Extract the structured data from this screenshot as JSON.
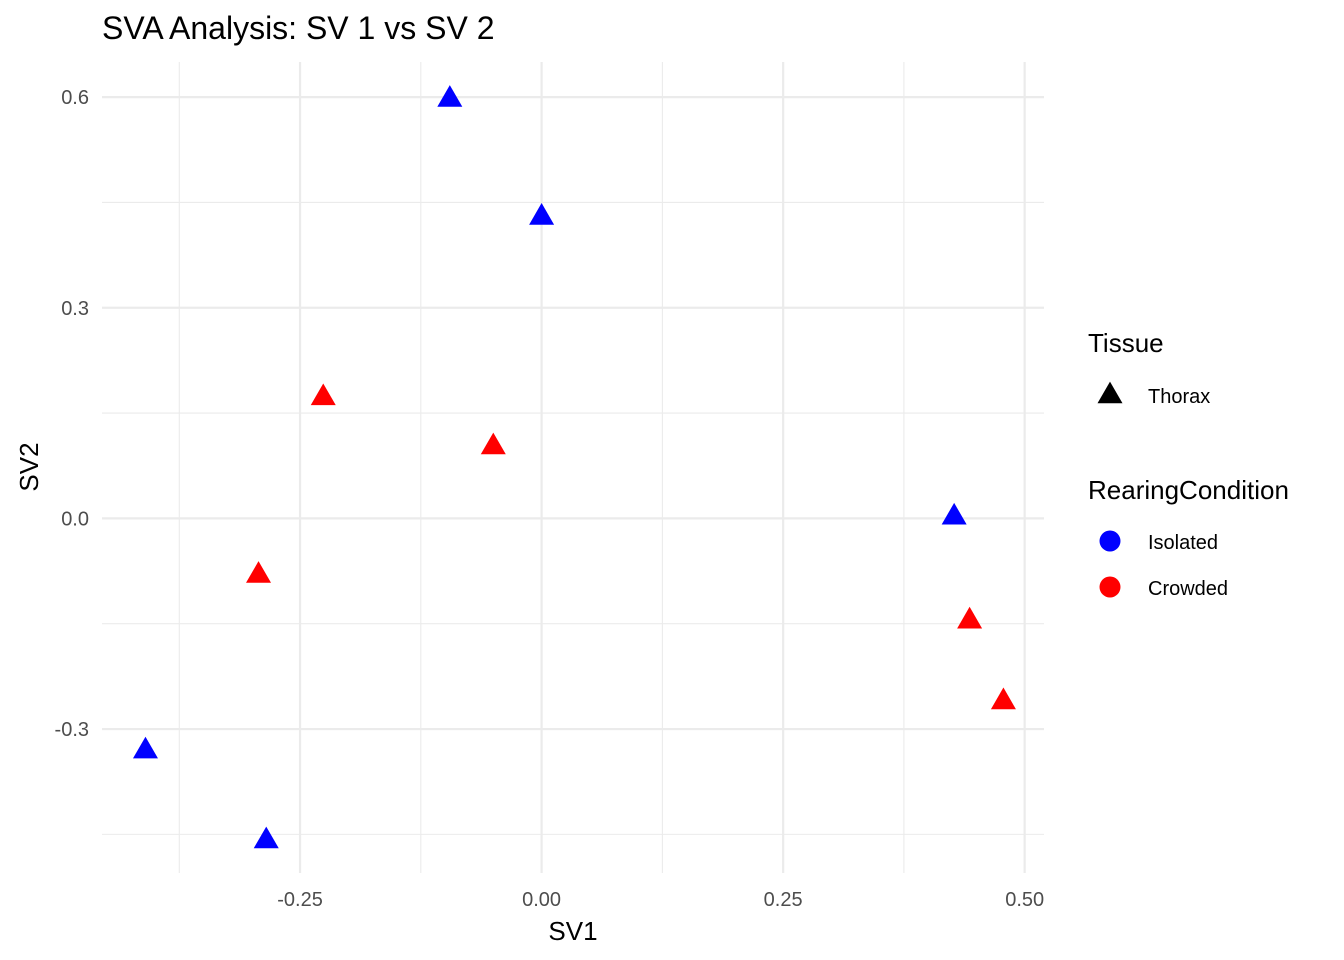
{
  "chart_data": {
    "type": "scatter",
    "title": "SVA Analysis: SV 1  vs SV 2",
    "xlabel": "SV1",
    "ylabel": "SV2",
    "xlim": [
      -0.455,
      0.52
    ],
    "ylim": [
      -0.505,
      0.65
    ],
    "x_ticks": [
      -0.25,
      0.0,
      0.25,
      0.5
    ],
    "x_tick_labels": [
      "-0.25",
      "0.00",
      "0.25",
      "0.50"
    ],
    "y_ticks": [
      -0.3,
      0.0,
      0.3,
      0.6
    ],
    "y_tick_labels": [
      "-0.3",
      "0.0",
      "0.3",
      "0.6"
    ],
    "x_minor": [
      -0.375,
      -0.125,
      0.125,
      0.375
    ],
    "y_minor": [
      -0.45,
      -0.15,
      0.15,
      0.45
    ],
    "grid": true,
    "legend_position": "right",
    "legends": [
      {
        "title": "Tissue",
        "entries": [
          {
            "label": "Thorax",
            "shape": "triangle",
            "color": "#000000"
          }
        ]
      },
      {
        "title": "RearingCondition",
        "entries": [
          {
            "label": "Isolated",
            "shape": "circle",
            "color": "#0000ff"
          },
          {
            "label": "Crowded",
            "shape": "circle",
            "color": "#ff0000"
          }
        ]
      }
    ],
    "series": [
      {
        "name": "Isolated",
        "color": "#0000ff",
        "shape": "triangle",
        "points": [
          {
            "x": -0.095,
            "y": 0.598
          },
          {
            "x": 0.0,
            "y": 0.43
          },
          {
            "x": 0.427,
            "y": 0.003
          },
          {
            "x": -0.41,
            "y": -0.33
          },
          {
            "x": -0.285,
            "y": -0.458
          }
        ]
      },
      {
        "name": "Crowded",
        "color": "#ff0000",
        "shape": "triangle",
        "points": [
          {
            "x": -0.226,
            "y": 0.173
          },
          {
            "x": -0.05,
            "y": 0.103
          },
          {
            "x": -0.293,
            "y": -0.08
          },
          {
            "x": 0.443,
            "y": -0.145
          },
          {
            "x": 0.478,
            "y": -0.26
          }
        ]
      }
    ]
  }
}
